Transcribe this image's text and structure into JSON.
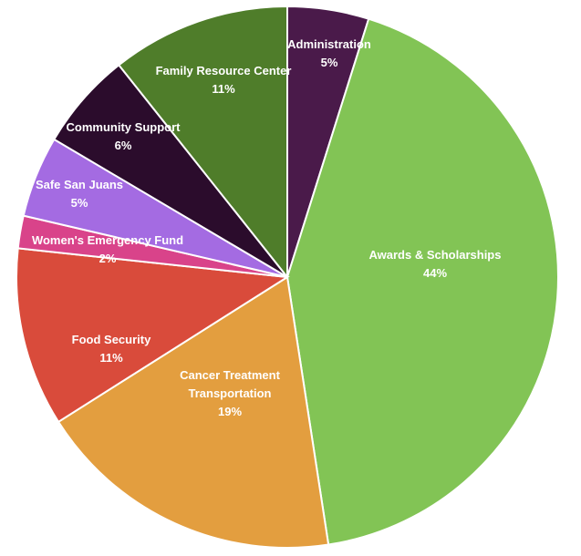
{
  "chart_data": {
    "type": "pie",
    "start": "top, clockwise",
    "slices": [
      {
        "label": "Administration",
        "label_lines": [
          "Administration"
        ],
        "value": 5,
        "value_label": "5%",
        "color": "#4a1a4a"
      },
      {
        "label": "Awards & Scholarships",
        "label_lines": [
          "Awards & Scholarships"
        ],
        "value": 44,
        "value_label": "44%",
        "color": "#82c455"
      },
      {
        "label": "Cancer Treatment Transportation",
        "label_lines": [
          "Cancer Treatment",
          "Transportation"
        ],
        "value": 19,
        "value_label": "19%",
        "color": "#e39e3f"
      },
      {
        "label": "Food Security",
        "label_lines": [
          "Food Security"
        ],
        "value": 11,
        "value_label": "11%",
        "color": "#d94b3b"
      },
      {
        "label": "Women's Emergency Fund",
        "label_lines": [
          "Women's Emergency Fund"
        ],
        "value": 2,
        "value_label": "2%",
        "color": "#d9438a"
      },
      {
        "label": "Safe San Juans",
        "label_lines": [
          "Safe San Juans"
        ],
        "value": 5,
        "value_label": "5%",
        "color": "#a46be2"
      },
      {
        "label": "Community Support",
        "label_lines": [
          "Community Support"
        ],
        "value": 6,
        "value_label": "6%",
        "color": "#2b0c2c"
      },
      {
        "label": "Family Resource Center",
        "label_lines": [
          "Family Resource Center"
        ],
        "value": 11,
        "value_label": "11%",
        "color": "#4f7d2a"
      }
    ]
  }
}
